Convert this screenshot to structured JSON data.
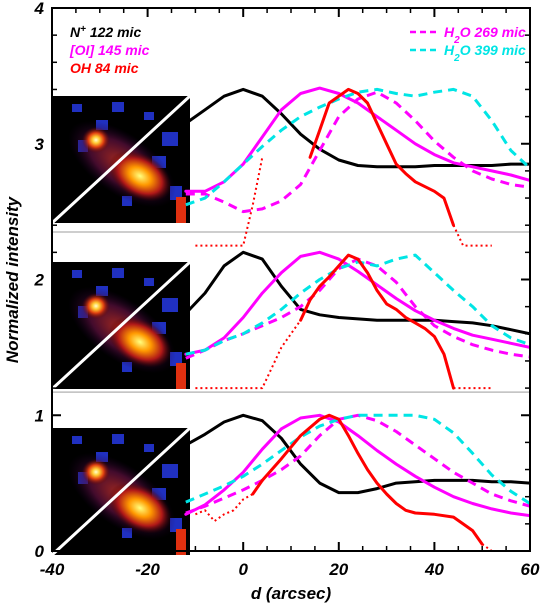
{
  "chart_data": {
    "type": "line",
    "title": "",
    "xlabel": "d (arcsec)",
    "ylabel": "Normalized intensity",
    "xlim": [
      -40,
      60
    ],
    "ylim": [
      0,
      4
    ],
    "x_ticks": [
      -40,
      -20,
      0,
      20,
      40,
      60
    ],
    "y_ticks": [
      0,
      1,
      2,
      3,
      4
    ],
    "x_tick_labels": [
      "-40",
      "-20",
      "0",
      "20",
      "40",
      "60"
    ],
    "y_tick_labels": [
      "0",
      "1",
      "2",
      "3",
      "4"
    ],
    "grid": false,
    "legend_left": [
      {
        "name": "N",
        "sup": "+",
        "rest": " 122 mic",
        "color": "#000000",
        "style": "solid"
      },
      {
        "name": "[OI] 145 mic",
        "sup": "",
        "rest": "",
        "color": "#ff00ff",
        "style": "solid"
      },
      {
        "name": "OH 84 mic",
        "sup": "",
        "rest": "",
        "color": "#ff0000",
        "style": "solid"
      }
    ],
    "legend_right": [
      {
        "name": "H",
        "sub": "2",
        "rest": "O 269 mic",
        "color": "#ff00ff",
        "style": "dashed"
      },
      {
        "name": "H",
        "sub": "2",
        "rest": "O 399 mic",
        "color": "#00e5e5",
        "style": "dashed"
      }
    ],
    "series": [
      {
        "key": "black_top",
        "color": "#000000",
        "style": "solid",
        "x": [
          -12,
          -8,
          -4,
          0,
          4,
          8,
          12,
          16,
          20,
          24,
          28,
          32,
          36,
          40,
          44,
          48,
          52,
          56,
          60
        ],
        "y": [
          3.15,
          3.25,
          3.35,
          3.4,
          3.35,
          3.22,
          3.07,
          2.96,
          2.88,
          2.84,
          2.83,
          2.83,
          2.83,
          2.84,
          2.84,
          2.84,
          2.84,
          2.85,
          2.85
        ]
      },
      {
        "key": "mag_top",
        "color": "#ff00ff",
        "style": "solid",
        "x": [
          -12,
          -8,
          -4,
          0,
          4,
          8,
          12,
          16,
          20,
          24,
          28,
          32,
          36,
          40,
          44,
          48,
          52,
          56,
          60
        ],
        "y": [
          2.65,
          2.65,
          2.72,
          2.85,
          3.05,
          3.25,
          3.37,
          3.41,
          3.37,
          3.3,
          3.2,
          3.1,
          3.0,
          2.92,
          2.86,
          2.83,
          2.8,
          2.77,
          2.73
        ]
      },
      {
        "key": "magdash_top",
        "color": "#ff00ff",
        "style": "dashed",
        "x": [
          -12,
          -8,
          -4,
          0,
          4,
          8,
          12,
          16,
          20,
          24,
          28,
          32,
          36,
          40,
          44,
          48,
          52,
          56,
          60
        ],
        "y": [
          2.63,
          2.63,
          2.57,
          2.5,
          2.52,
          2.58,
          2.7,
          2.95,
          3.2,
          3.33,
          3.38,
          3.3,
          3.17,
          3.02,
          2.9,
          2.8,
          2.74,
          2.7,
          2.68
        ]
      },
      {
        "key": "cyan_top",
        "color": "#00e5e5",
        "style": "dashed",
        "x": [
          -12,
          -8,
          -4,
          0,
          4,
          8,
          12,
          16,
          20,
          24,
          28,
          32,
          36,
          40,
          44,
          48,
          52,
          56,
          60
        ],
        "y": [
          2.55,
          2.6,
          2.72,
          2.85,
          2.98,
          3.1,
          3.2,
          3.27,
          3.33,
          3.38,
          3.4,
          3.37,
          3.35,
          3.38,
          3.4,
          3.35,
          3.17,
          2.95,
          2.82
        ]
      },
      {
        "key": "red_top",
        "color": "#ff0000",
        "style": "solid",
        "x": [
          14,
          16,
          18,
          20,
          22,
          24,
          26,
          28,
          30,
          32,
          34,
          36,
          40,
          42,
          44
        ],
        "y": [
          2.9,
          3.1,
          3.3,
          3.35,
          3.4,
          3.37,
          3.3,
          3.15,
          3.0,
          2.85,
          2.78,
          2.72,
          2.65,
          2.6,
          2.4
        ]
      },
      {
        "key": "red_top_dot_l",
        "color": "#ff0000",
        "style": "dotted",
        "x": [
          -10,
          -2,
          0,
          2,
          4
        ],
        "y": [
          2.25,
          2.25,
          2.25,
          2.55,
          2.9
        ]
      },
      {
        "key": "red_top_dot_r",
        "color": "#ff0000",
        "style": "dotted",
        "x": [
          44,
          46,
          48,
          52
        ],
        "y": [
          2.4,
          2.25,
          2.25,
          2.25
        ]
      },
      {
        "key": "black_mid",
        "color": "#000000",
        "style": "solid",
        "x": [
          -12,
          -8,
          -4,
          0,
          4,
          8,
          12,
          16,
          20,
          24,
          28,
          32,
          36,
          40,
          44,
          48,
          52,
          56,
          60
        ],
        "y": [
          1.75,
          1.9,
          2.1,
          2.2,
          2.15,
          1.95,
          1.78,
          1.74,
          1.72,
          1.71,
          1.7,
          1.7,
          1.7,
          1.7,
          1.69,
          1.68,
          1.66,
          1.63,
          1.6
        ]
      },
      {
        "key": "mag_mid",
        "color": "#ff00ff",
        "style": "solid",
        "x": [
          -12,
          -8,
          -4,
          0,
          4,
          8,
          12,
          16,
          20,
          24,
          28,
          32,
          36,
          40,
          44,
          48,
          52,
          56,
          60
        ],
        "y": [
          1.45,
          1.48,
          1.57,
          1.72,
          1.9,
          2.05,
          2.17,
          2.2,
          2.15,
          2.06,
          1.96,
          1.86,
          1.77,
          1.7,
          1.64,
          1.59,
          1.56,
          1.53,
          1.5
        ]
      },
      {
        "key": "magdash_mid",
        "color": "#ff00ff",
        "style": "dashed",
        "x": [
          -12,
          -8,
          -4,
          0,
          4,
          8,
          12,
          16,
          20,
          24,
          28,
          32,
          36,
          40,
          44,
          48,
          52,
          56,
          60
        ],
        "y": [
          1.42,
          1.48,
          1.55,
          1.6,
          1.66,
          1.72,
          1.8,
          1.92,
          2.08,
          2.15,
          2.1,
          1.98,
          1.8,
          1.66,
          1.58,
          1.52,
          1.48,
          1.45,
          1.43
        ]
      },
      {
        "key": "cyan_mid",
        "color": "#00e5e5",
        "style": "dashed",
        "x": [
          -12,
          -8,
          -4,
          0,
          4,
          8,
          12,
          16,
          20,
          24,
          28,
          32,
          36,
          40,
          44,
          48,
          52,
          56,
          60
        ],
        "y": [
          1.45,
          1.48,
          1.55,
          1.6,
          1.68,
          1.78,
          1.9,
          2.0,
          2.08,
          2.13,
          2.1,
          2.15,
          2.18,
          2.05,
          1.92,
          1.8,
          1.66,
          1.57,
          1.52
        ]
      },
      {
        "key": "red_mid",
        "color": "#ff0000",
        "style": "solid",
        "x": [
          12,
          14,
          16,
          18,
          20,
          22,
          24,
          26,
          28,
          30,
          32,
          34,
          36,
          38,
          40,
          42,
          44
        ],
        "y": [
          1.7,
          1.85,
          1.95,
          2.02,
          2.1,
          2.18,
          2.15,
          2.05,
          1.92,
          1.82,
          1.78,
          1.72,
          1.68,
          1.64,
          1.58,
          1.45,
          1.2
        ]
      },
      {
        "key": "red_mid_dot_l",
        "color": "#ff0000",
        "style": "dotted",
        "x": [
          -10,
          -2,
          2,
          4,
          8,
          12
        ],
        "y": [
          1.2,
          1.2,
          1.2,
          1.2,
          1.5,
          1.7
        ]
      },
      {
        "key": "red_mid_dot_r",
        "color": "#ff0000",
        "style": "dotted",
        "x": [
          44,
          46,
          50,
          52
        ],
        "y": [
          1.2,
          1.2,
          1.2,
          1.2
        ]
      },
      {
        "key": "black_bot",
        "color": "#000000",
        "style": "solid",
        "x": [
          -12,
          -8,
          -4,
          0,
          4,
          8,
          12,
          16,
          20,
          24,
          28,
          32,
          36,
          40,
          44,
          48,
          52,
          56,
          60
        ],
        "y": [
          0.78,
          0.86,
          0.95,
          1.0,
          0.96,
          0.83,
          0.64,
          0.5,
          0.43,
          0.43,
          0.46,
          0.5,
          0.51,
          0.52,
          0.52,
          0.52,
          0.51,
          0.51,
          0.5
        ]
      },
      {
        "key": "mag_bot",
        "color": "#ff00ff",
        "style": "solid",
        "x": [
          -12,
          -8,
          -4,
          0,
          4,
          8,
          12,
          16,
          20,
          24,
          28,
          32,
          36,
          40,
          44,
          48,
          52,
          56,
          60
        ],
        "y": [
          0.27,
          0.34,
          0.45,
          0.58,
          0.75,
          0.9,
          0.98,
          1.0,
          0.95,
          0.85,
          0.74,
          0.64,
          0.55,
          0.47,
          0.4,
          0.35,
          0.31,
          0.28,
          0.26
        ]
      },
      {
        "key": "magdash_bot",
        "color": "#ff00ff",
        "style": "dashed",
        "x": [
          -12,
          -8,
          -4,
          0,
          4,
          8,
          12,
          16,
          20,
          24,
          28,
          32,
          36,
          40,
          44,
          48,
          52,
          56,
          60
        ],
        "y": [
          0.28,
          0.33,
          0.39,
          0.45,
          0.52,
          0.6,
          0.7,
          0.85,
          0.97,
          1.0,
          0.96,
          0.88,
          0.78,
          0.68,
          0.58,
          0.5,
          0.42,
          0.37,
          0.33
        ]
      },
      {
        "key": "cyan_bot",
        "color": "#00e5e5",
        "style": "dashed",
        "x": [
          -12,
          -8,
          -4,
          0,
          4,
          8,
          12,
          16,
          20,
          24,
          28,
          32,
          36,
          40,
          44,
          48,
          52,
          56,
          60
        ],
        "y": [
          0.36,
          0.42,
          0.48,
          0.55,
          0.64,
          0.74,
          0.84,
          0.92,
          0.97,
          1.0,
          1.0,
          1.0,
          1.0,
          0.97,
          0.87,
          0.72,
          0.56,
          0.44,
          0.35
        ]
      },
      {
        "key": "red_bot",
        "color": "#ff0000",
        "style": "solid",
        "x": [
          2,
          4,
          8,
          12,
          16,
          18,
          20,
          22,
          24,
          26,
          28,
          30,
          32,
          34,
          36,
          40,
          44,
          46,
          48,
          50
        ],
        "y": [
          0.42,
          0.52,
          0.68,
          0.85,
          0.97,
          1.0,
          0.97,
          0.85,
          0.72,
          0.6,
          0.5,
          0.42,
          0.35,
          0.3,
          0.28,
          0.27,
          0.25,
          0.2,
          0.15,
          0.05
        ]
      },
      {
        "key": "red_bot_dot_l",
        "color": "#ff0000",
        "style": "dotted",
        "x": [
          -10,
          -8,
          -6,
          -4,
          -2,
          0,
          2
        ],
        "y": [
          0.27,
          0.3,
          0.22,
          0.27,
          0.3,
          0.38,
          0.42
        ]
      },
      {
        "key": "red_bot_dot_r",
        "color": "#ff0000",
        "style": "dotted",
        "x": [
          50,
          52,
          54
        ],
        "y": [
          0.05,
          0.0,
          0.0
        ]
      }
    ]
  }
}
